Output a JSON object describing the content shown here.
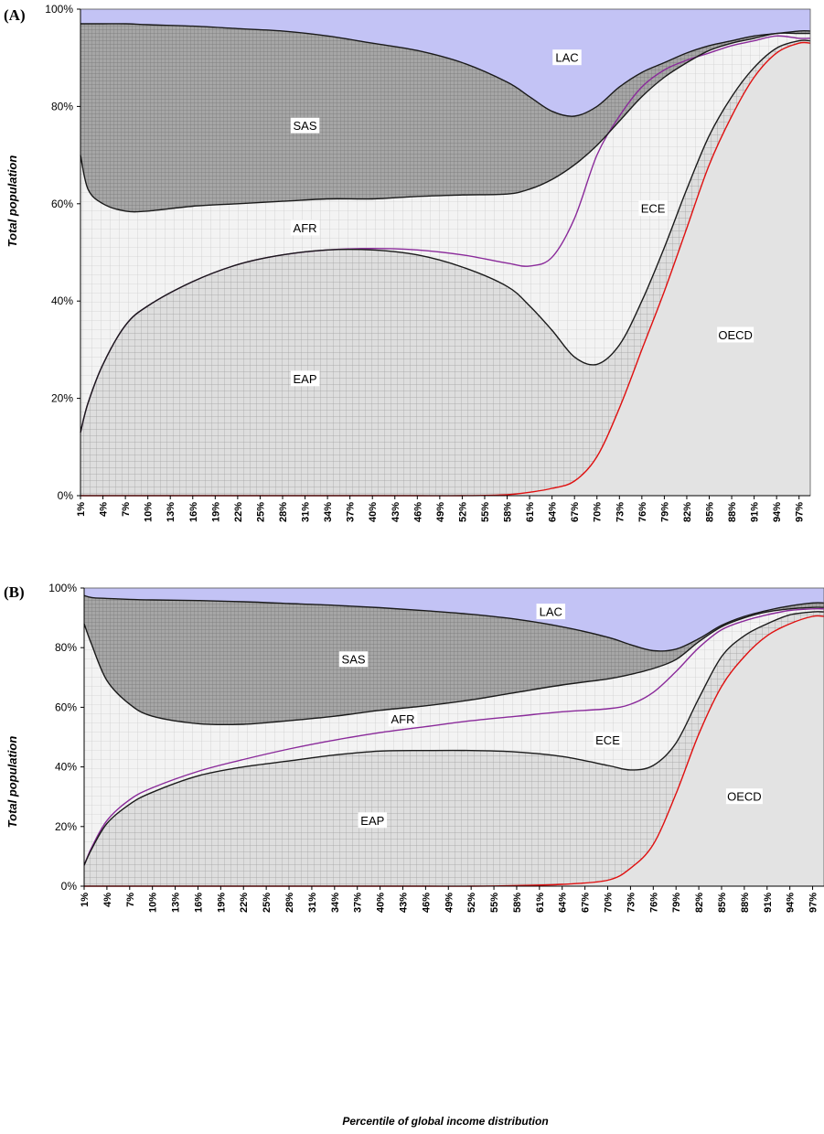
{
  "figure": {
    "x_axis_title": "Percentile of global income distribution",
    "y_axis_title": "Total population"
  },
  "colors": {
    "LAC": "#c3c3f5",
    "SAS": "#a6a6a6",
    "AFR": "#f3f3f3",
    "ECE": "#dedede",
    "EAP": "#a9a9a9",
    "OECD": "#e3e3e3",
    "boundary_black": "#1a1a1a",
    "boundary_purple": "#8a2a9a",
    "boundary_red": "#e01010"
  },
  "chart_data": [
    {
      "type": "area",
      "panel": "(A)",
      "stacking": "cumulative boundaries, bottom to top: OECD, ECE, EAP, AFR, SAS, LAC",
      "y_ticks": [
        "0%",
        "20%",
        "40%",
        "60%",
        "80%",
        "100%"
      ],
      "ylim": [
        0,
        100
      ],
      "x_ticks": [
        "1%",
        "4%",
        "7%",
        "10%",
        "13%",
        "16%",
        "19%",
        "22%",
        "25%",
        "28%",
        "31%",
        "34%",
        "37%",
        "40%",
        "43%",
        "46%",
        "49%",
        "52%",
        "55%",
        "58%",
        "61%",
        "64%",
        "67%",
        "70%",
        "73%",
        "76%",
        "79%",
        "82%",
        "85%",
        "88%",
        "91%",
        "94%",
        "97%"
      ],
      "xlim": [
        1,
        98.5
      ],
      "x": [
        1,
        2,
        4,
        7,
        10,
        16,
        22,
        28,
        34,
        40,
        46,
        52,
        58,
        61,
        64,
        67,
        70,
        73,
        76,
        79,
        82,
        85,
        88,
        91,
        94,
        97
      ],
      "series": [
        {
          "name": "OECD",
          "boundary": [
            0,
            0,
            0,
            0,
            0,
            0,
            0,
            0,
            0,
            0,
            0,
            0,
            0.2,
            0.7,
            1.5,
            3,
            8,
            18,
            30,
            42,
            55,
            68,
            78,
            86,
            91,
            93
          ]
        },
        {
          "name": "ECE",
          "boundary": [
            13,
            19,
            27,
            35,
            39,
            44,
            47.5,
            49.5,
            50.5,
            50.8,
            50.5,
            49.5,
            47.8,
            47.2,
            49,
            57,
            70,
            78,
            84,
            87.5,
            89.5,
            91,
            92.5,
            93.5,
            94.5,
            94
          ]
        },
        {
          "name": "EAP",
          "boundary": [
            13,
            19,
            27,
            35,
            39,
            44,
            47.5,
            49.5,
            50.5,
            50.5,
            49.5,
            47,
            43,
            39,
            34,
            28.5,
            27,
            31,
            40,
            51,
            63,
            74,
            82,
            88,
            92,
            93.5
          ]
        },
        {
          "name": "AFR",
          "boundary": [
            70,
            63,
            60,
            58.5,
            58.5,
            59.5,
            60,
            60.5,
            61,
            61,
            61.5,
            61.8,
            62,
            63,
            65,
            68,
            72,
            77,
            82,
            86,
            89,
            91.5,
            93,
            94,
            95,
            95
          ]
        },
        {
          "name": "SAS",
          "boundary": [
            97,
            97,
            97,
            97,
            96.8,
            96.5,
            96,
            95.5,
            94.5,
            93,
            91.5,
            89,
            85,
            82,
            79,
            78,
            80,
            84,
            87,
            89,
            91,
            92.5,
            93.5,
            94.5,
            95,
            95.5
          ]
        },
        {
          "name": "LAC",
          "boundary": [
            100,
            100,
            100,
            100,
            100,
            100,
            100,
            100,
            100,
            100,
            100,
            100,
            100,
            100,
            100,
            100,
            100,
            100,
            100,
            100,
            100,
            100,
            100,
            100,
            100,
            100
          ]
        }
      ],
      "labels": [
        {
          "text": "LAC",
          "x": 66,
          "y": 90
        },
        {
          "text": "SAS",
          "x": 31,
          "y": 76
        },
        {
          "text": "AFR",
          "x": 31,
          "y": 55
        },
        {
          "text": "ECE",
          "x": 77.5,
          "y": 59
        },
        {
          "text": "OECD",
          "x": 88.5,
          "y": 33
        },
        {
          "text": "EAP",
          "x": 31,
          "y": 24
        }
      ]
    },
    {
      "type": "area",
      "panel": "(B)",
      "stacking": "cumulative boundaries, bottom to top: OECD, ECE, EAP, AFR, SAS, LAC",
      "y_ticks": [
        "0%",
        "20%",
        "40%",
        "60%",
        "80%",
        "100%"
      ],
      "ylim": [
        0,
        100
      ],
      "x_ticks": [
        "1%",
        "4%",
        "7%",
        "10%",
        "13%",
        "16%",
        "19%",
        "22%",
        "25%",
        "28%",
        "31%",
        "34%",
        "37%",
        "40%",
        "43%",
        "46%",
        "49%",
        "52%",
        "55%",
        "58%",
        "61%",
        "64%",
        "67%",
        "70%",
        "73%",
        "76%",
        "79%",
        "82%",
        "85%",
        "88%",
        "91%",
        "94%",
        "97%"
      ],
      "xlim": [
        1,
        98.5
      ],
      "x": [
        1,
        2,
        4,
        7,
        10,
        16,
        22,
        28,
        34,
        40,
        46,
        52,
        58,
        64,
        70,
        73,
        76,
        79,
        82,
        85,
        88,
        91,
        94,
        97
      ],
      "series": [
        {
          "name": "OECD",
          "boundary": [
            0,
            0,
            0,
            0,
            0,
            0,
            0,
            0,
            0,
            0,
            0,
            0,
            0.2,
            0.6,
            2,
            6,
            14,
            31,
            51,
            67,
            77,
            84,
            88,
            90.5
          ]
        },
        {
          "name": "ECE",
          "boundary": [
            7,
            13,
            22,
            29,
            33,
            38.5,
            42.5,
            46,
            49,
            51.5,
            53.5,
            55.5,
            57,
            58.5,
            59.5,
            61,
            65,
            72,
            80,
            86,
            89,
            91,
            92.5,
            93
          ]
        },
        {
          "name": "EAP",
          "boundary": [
            7,
            12.5,
            21,
            27.5,
            31.5,
            37,
            40,
            42,
            44,
            45.3,
            45.5,
            45.5,
            45,
            43.5,
            40.5,
            39,
            40.5,
            48,
            63,
            77,
            84,
            88,
            91,
            92
          ]
        },
        {
          "name": "AFR",
          "boundary": [
            88,
            81,
            69,
            61,
            57,
            54.5,
            54.3,
            55.5,
            57,
            59,
            60.5,
            62.5,
            65,
            67.5,
            69.5,
            71,
            73,
            76,
            82,
            87,
            90,
            92,
            93,
            93.5
          ]
        },
        {
          "name": "SAS",
          "boundary": [
            97.5,
            96.8,
            96.5,
            96.2,
            96,
            95.8,
            95.4,
            94.8,
            94.2,
            93.4,
            92.4,
            91.2,
            89.5,
            87,
            83.5,
            81,
            79,
            79.5,
            83,
            87.5,
            90.5,
            92.5,
            94,
            95
          ]
        },
        {
          "name": "LAC",
          "boundary": [
            100,
            100,
            100,
            100,
            100,
            100,
            100,
            100,
            100,
            100,
            100,
            100,
            100,
            100,
            100,
            100,
            100,
            100,
            100,
            100,
            100,
            100,
            100,
            100
          ]
        }
      ],
      "labels": [
        {
          "text": "LAC",
          "x": 62.5,
          "y": 92
        },
        {
          "text": "SAS",
          "x": 36.5,
          "y": 76
        },
        {
          "text": "AFR",
          "x": 43,
          "y": 56
        },
        {
          "text": "ECE",
          "x": 70,
          "y": 49
        },
        {
          "text": "OECD",
          "x": 88,
          "y": 30
        },
        {
          "text": "EAP",
          "x": 39,
          "y": 22
        }
      ]
    }
  ]
}
